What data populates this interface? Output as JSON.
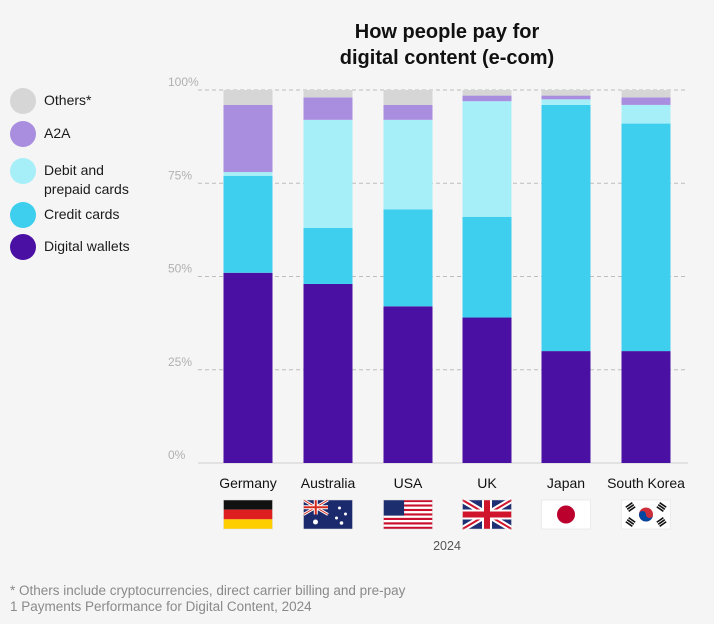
{
  "chart_data": {
    "type": "bar",
    "stacked": true,
    "title_line1": "How people pay for",
    "title_line2": "digital content (e-com)",
    "categories": [
      "Germany",
      "Australia",
      "USA",
      "UK",
      "Japan",
      "South Korea"
    ],
    "xlabel": "2024",
    "ylim": [
      0,
      100
    ],
    "yticks": [
      "0%",
      "25%",
      "50%",
      "75%",
      "100%"
    ],
    "series": [
      {
        "name": "Digital wallets",
        "color": "#4a0fa3",
        "values": [
          51,
          48,
          42,
          39,
          30,
          30
        ]
      },
      {
        "name": "Credit cards",
        "color": "#3ecfef",
        "values": [
          26,
          15,
          26,
          27,
          66,
          61
        ]
      },
      {
        "name": "Debit and prepaid cards",
        "color": "#a6eef8",
        "values": [
          1,
          29,
          24,
          31,
          1.5,
          5
        ]
      },
      {
        "name": "A2A",
        "color": "#a98ee0",
        "values": [
          18,
          6,
          4,
          1.5,
          1,
          2
        ]
      },
      {
        "name": "Others*",
        "color": "#d6d6d6",
        "values": [
          4,
          2,
          4,
          1.5,
          1.5,
          2
        ]
      }
    ],
    "grid": true,
    "legend_position": "left"
  },
  "legend": [
    {
      "label": "Others*",
      "color": "#d6d6d6"
    },
    {
      "label": "A2A",
      "color": "#a98ee0"
    },
    {
      "label": "Debit and\nprepaid cards",
      "color": "#a6eef8"
    },
    {
      "label": "Credit cards",
      "color": "#3ecfef"
    },
    {
      "label": "Digital wallets",
      "color": "#4a0fa3"
    }
  ],
  "flags": [
    "germany-flag",
    "australia-flag",
    "usa-flag",
    "uk-flag",
    "japan-flag",
    "south-korea-flag"
  ],
  "footnotes": {
    "line1": "* Others include cryptocurrencies, direct carrier billing and pre-pay",
    "line2": "1 Payments Performance for Digital Content, 2024"
  }
}
